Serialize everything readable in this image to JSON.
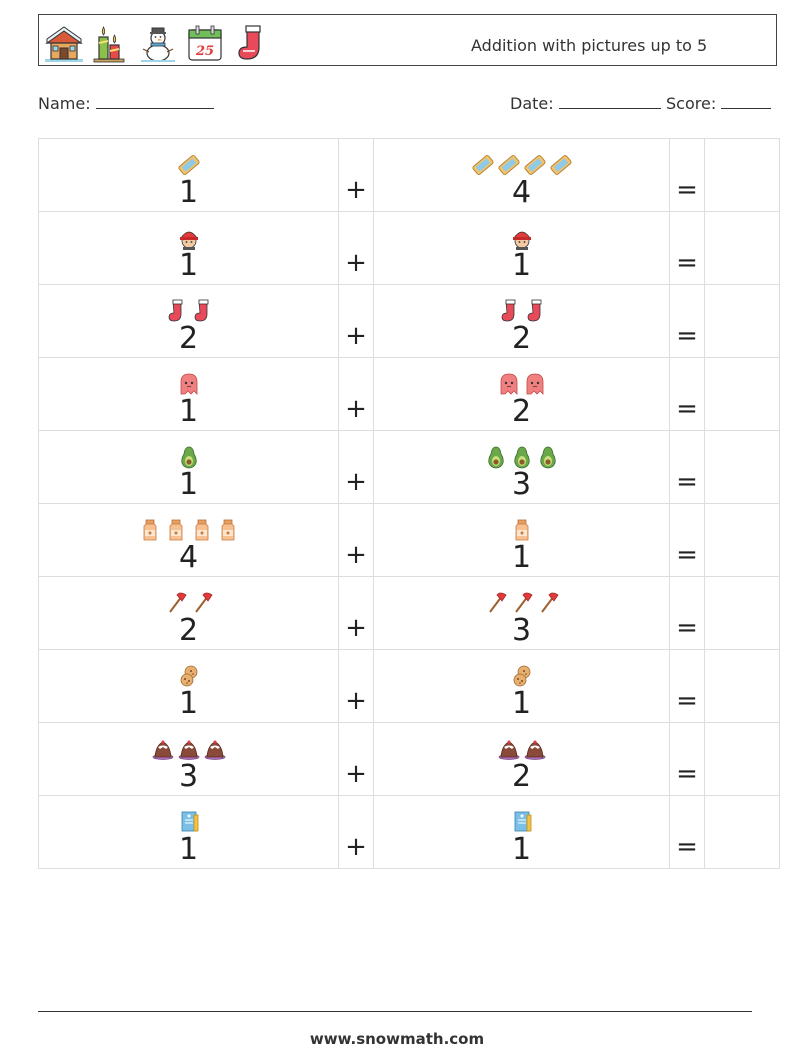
{
  "header": {
    "title": "Addition with pictures up to 5",
    "icons": [
      "house-icon",
      "candles-icon",
      "snowman-icon",
      "calendar-25-icon",
      "stocking-icon"
    ],
    "calendar_day": "25"
  },
  "meta": {
    "name_label": "Name:",
    "date_label": "Date:",
    "score_label": "Score:"
  },
  "problems": [
    {
      "left": {
        "count": 1,
        "icon": "ticket-icon"
      },
      "right": {
        "count": 4,
        "icon": "ticket-icon"
      }
    },
    {
      "left": {
        "count": 1,
        "icon": "firefighter-icon"
      },
      "right": {
        "count": 1,
        "icon": "firefighter-icon"
      }
    },
    {
      "left": {
        "count": 2,
        "icon": "stocking-icon"
      },
      "right": {
        "count": 2,
        "icon": "stocking-icon"
      }
    },
    {
      "left": {
        "count": 1,
        "icon": "ghost-icon"
      },
      "right": {
        "count": 2,
        "icon": "ghost-icon"
      }
    },
    {
      "left": {
        "count": 1,
        "icon": "avocado-icon"
      },
      "right": {
        "count": 3,
        "icon": "avocado-icon"
      }
    },
    {
      "left": {
        "count": 4,
        "icon": "milk-bottle-icon"
      },
      "right": {
        "count": 1,
        "icon": "milk-bottle-icon"
      }
    },
    {
      "left": {
        "count": 2,
        "icon": "axe-icon"
      },
      "right": {
        "count": 3,
        "icon": "axe-icon"
      }
    },
    {
      "left": {
        "count": 1,
        "icon": "cookies-icon"
      },
      "right": {
        "count": 1,
        "icon": "cookies-icon"
      }
    },
    {
      "left": {
        "count": 3,
        "icon": "pudding-icon"
      },
      "right": {
        "count": 2,
        "icon": "pudding-icon"
      }
    },
    {
      "left": {
        "count": 1,
        "icon": "book-icon"
      },
      "right": {
        "count": 1,
        "icon": "book-icon"
      }
    }
  ],
  "operators": {
    "plus": "+",
    "equals": "="
  },
  "footer": {
    "url": "www.snowmath.com"
  }
}
